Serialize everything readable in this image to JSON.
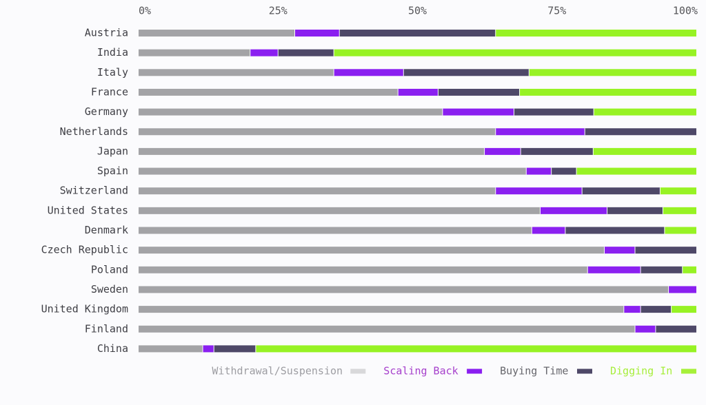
{
  "chart_data": {
    "type": "bar",
    "orientation": "horizontal",
    "stacked": true,
    "categories": [
      "Austria",
      "India",
      "Italy",
      "France",
      "Germany",
      "Netherlands",
      "Japan",
      "Spain",
      "Switzerland",
      "United States",
      "Denmark",
      "Czech Republic",
      "Poland",
      "Sweden",
      "United Kingdom",
      "Finland",
      "China"
    ],
    "series": [
      {
        "name": "Withdrawal/Suspension",
        "color": "#a3a3a6",
        "values": [
          28,
          20,
          35,
          46.5,
          54.5,
          64,
          62,
          69.5,
          64,
          72,
          70.5,
          83.5,
          80.5,
          95,
          87,
          89,
          11.5
        ]
      },
      {
        "name": "Scaling Back",
        "color": "#8a1ff0",
        "values": [
          8,
          5,
          12.5,
          7.2,
          12.8,
          16,
          6.5,
          4.5,
          15.5,
          12,
          6,
          5.5,
          9.5,
          5,
          3,
          3.7,
          2
        ]
      },
      {
        "name": "Buying Time",
        "color": "#4e4868",
        "values": [
          28,
          10,
          22.5,
          14.6,
          14.3,
          20,
          13,
          4.5,
          14,
          10,
          17.8,
          11,
          7.5,
          0,
          5.5,
          7.3,
          7.5
        ]
      },
      {
        "name": "Digging In",
        "color": "#97f224",
        "values": [
          36,
          65,
          30,
          31.7,
          18.4,
          0,
          18.5,
          21.5,
          6.5,
          6,
          5.7,
          0,
          2.5,
          0,
          4.5,
          0,
          79
        ]
      }
    ],
    "x_ticks": [
      "0%",
      "25%",
      "50%",
      "75%",
      "100%"
    ],
    "xlim": [
      0,
      100
    ],
    "legend": {
      "position": "bottom",
      "items": [
        {
          "label": "Withdrawal/Suspension",
          "text_color": "#9d9da2",
          "swatch": "#d8d8da"
        },
        {
          "label": "Scaling Back",
          "text_color": "#a640cc",
          "swatch": "#8a1ff0"
        },
        {
          "label": "Buying Time",
          "text_color": "#66666c",
          "swatch": "#4e4868"
        },
        {
          "label": "Digging In",
          "text_color": "#a6ee3a",
          "swatch": "#a6f03a"
        }
      ]
    },
    "grid": false,
    "title": "",
    "xlabel": "",
    "ylabel": ""
  }
}
